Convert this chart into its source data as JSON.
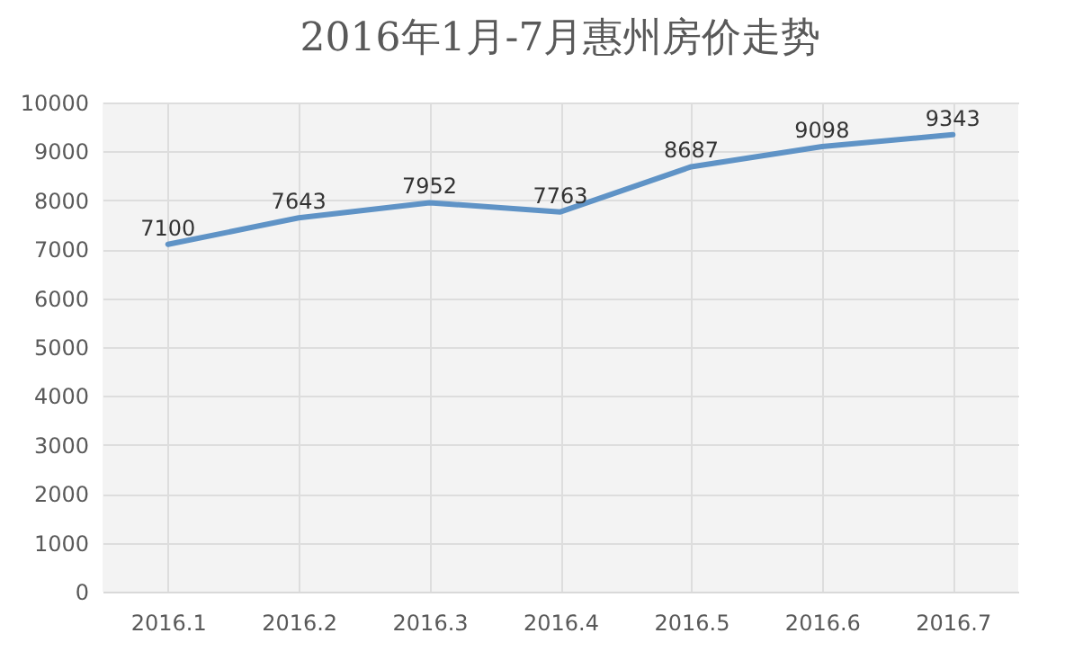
{
  "chart_data": {
    "type": "line",
    "title": "2016年1月-7月惠州房价走势",
    "categories": [
      "2016.1",
      "2016.2",
      "2016.3",
      "2016.4",
      "2016.5",
      "2016.6",
      "2016.7"
    ],
    "values": [
      7100,
      7643,
      7952,
      7763,
      8687,
      9098,
      9343
    ],
    "color": "#5f93c6",
    "ylim": [
      0,
      10000
    ],
    "yticks": [
      0,
      1000,
      2000,
      3000,
      4000,
      5000,
      6000,
      7000,
      8000,
      9000,
      10000
    ],
    "grid": true,
    "data_labels": true,
    "marker": "none"
  }
}
